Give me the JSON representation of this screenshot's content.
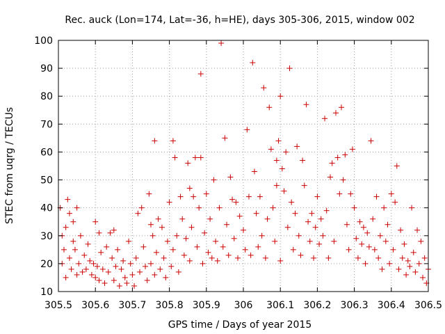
{
  "chart_data": {
    "type": "scatter",
    "title": "Rec. auck (Lon=174, Lat=-36, h=HE), days 305-306, 2015, window 002",
    "xlabel": "GPS time / Days of year 2015",
    "ylabel": "STEC from uqrg / TECUs",
    "xlim": [
      305.5,
      306.5
    ],
    "ylim": [
      10,
      100
    ],
    "grid": true,
    "marker": "plus",
    "color": "#cc0000",
    "x_ticks": [
      "305.5",
      "305.6",
      "305.7",
      "305.8",
      "305.9",
      "306",
      "306.1",
      "306.2",
      "306.3",
      "306.4",
      "306.5"
    ],
    "y_ticks": [
      "10",
      "20",
      "30",
      "40",
      "50",
      "60",
      "70",
      "80",
      "90",
      "100"
    ],
    "series": [
      {
        "points": [
          [
            305.505,
            40
          ],
          [
            305.51,
            20
          ],
          [
            305.51,
            30
          ],
          [
            305.515,
            25
          ],
          [
            305.52,
            15
          ],
          [
            305.52,
            33
          ],
          [
            305.525,
            43
          ],
          [
            305.53,
            38
          ],
          [
            305.53,
            22
          ],
          [
            305.535,
            18
          ],
          [
            305.54,
            35
          ],
          [
            305.54,
            28
          ],
          [
            305.545,
            25
          ],
          [
            305.55,
            16
          ],
          [
            305.55,
            40
          ],
          [
            305.555,
            20
          ],
          [
            305.56,
            30
          ],
          [
            305.565,
            17
          ],
          [
            305.57,
            23
          ],
          [
            305.575,
            18
          ],
          [
            305.58,
            27
          ],
          [
            305.585,
            21
          ],
          [
            305.59,
            16
          ],
          [
            305.595,
            20
          ],
          [
            305.6,
            35
          ],
          [
            305.6,
            15
          ],
          [
            305.605,
            19
          ],
          [
            305.61,
            31
          ],
          [
            305.61,
            14
          ],
          [
            305.615,
            24
          ],
          [
            305.62,
            18
          ],
          [
            305.625,
            13
          ],
          [
            305.63,
            26
          ],
          [
            305.635,
            17
          ],
          [
            305.64,
            31
          ],
          [
            305.645,
            22
          ],
          [
            305.65,
            32
          ],
          [
            305.65,
            14
          ],
          [
            305.655,
            19
          ],
          [
            305.66,
            25
          ],
          [
            305.665,
            12
          ],
          [
            305.67,
            18
          ],
          [
            305.675,
            21
          ],
          [
            305.68,
            15
          ],
          [
            305.685,
            13
          ],
          [
            305.69,
            28
          ],
          [
            305.695,
            20
          ],
          [
            305.7,
            16
          ],
          [
            305.705,
            12
          ],
          [
            305.71,
            22
          ],
          [
            305.715,
            38
          ],
          [
            305.72,
            17
          ],
          [
            305.725,
            40
          ],
          [
            305.73,
            26
          ],
          [
            305.735,
            19
          ],
          [
            305.74,
            14
          ],
          [
            305.745,
            45
          ],
          [
            305.75,
            34
          ],
          [
            305.75,
            20
          ],
          [
            305.755,
            30
          ],
          [
            305.76,
            64
          ],
          [
            305.76,
            16
          ],
          [
            305.765,
            24
          ],
          [
            305.77,
            36
          ],
          [
            305.775,
            18
          ],
          [
            305.78,
            33
          ],
          [
            305.785,
            22
          ],
          [
            305.79,
            15
          ],
          [
            305.795,
            28
          ],
          [
            305.8,
            42
          ],
          [
            305.805,
            19
          ],
          [
            305.81,
            64
          ],
          [
            305.81,
            25
          ],
          [
            305.815,
            58
          ],
          [
            305.82,
            30
          ],
          [
            305.825,
            17
          ],
          [
            305.83,
            44
          ],
          [
            305.835,
            36
          ],
          [
            305.84,
            23
          ],
          [
            305.845,
            29
          ],
          [
            305.85,
            56
          ],
          [
            305.855,
            47
          ],
          [
            305.855,
            21
          ],
          [
            305.86,
            33
          ],
          [
            305.865,
            44
          ],
          [
            305.87,
            58
          ],
          [
            305.875,
            26
          ],
          [
            305.88,
            40
          ],
          [
            305.885,
            88
          ],
          [
            305.885,
            58
          ],
          [
            305.89,
            20
          ],
          [
            305.895,
            31
          ],
          [
            305.9,
            45
          ],
          [
            305.905,
            24
          ],
          [
            305.91,
            36
          ],
          [
            305.915,
            22
          ],
          [
            305.92,
            50
          ],
          [
            305.925,
            28
          ],
          [
            305.93,
            21
          ],
          [
            305.935,
            40
          ],
          [
            305.94,
            99
          ],
          [
            305.945,
            26
          ],
          [
            305.95,
            65
          ],
          [
            305.955,
            34
          ],
          [
            305.96,
            23
          ],
          [
            305.965,
            51
          ],
          [
            305.97,
            43
          ],
          [
            305.975,
            29
          ],
          [
            305.98,
            42
          ],
          [
            305.985,
            22
          ],
          [
            305.99,
            37
          ],
          [
            306.0,
            32
          ],
          [
            306.005,
            25
          ],
          [
            306.01,
            68
          ],
          [
            306.015,
            44
          ],
          [
            306.02,
            23
          ],
          [
            306.025,
            92
          ],
          [
            306.03,
            53
          ],
          [
            306.035,
            38
          ],
          [
            306.04,
            26
          ],
          [
            306.045,
            44
          ],
          [
            306.05,
            30
          ],
          [
            306.055,
            83
          ],
          [
            306.06,
            22
          ],
          [
            306.065,
            36
          ],
          [
            306.07,
            76
          ],
          [
            306.075,
            61
          ],
          [
            306.08,
            40
          ],
          [
            306.085,
            28
          ],
          [
            306.09,
            57
          ],
          [
            306.09,
            48
          ],
          [
            306.095,
            64
          ],
          [
            306.1,
            80
          ],
          [
            306.1,
            21
          ],
          [
            306.105,
            54
          ],
          [
            306.11,
            46
          ],
          [
            306.115,
            60
          ],
          [
            306.12,
            33
          ],
          [
            306.125,
            90
          ],
          [
            306.13,
            42
          ],
          [
            306.135,
            25
          ],
          [
            306.14,
            38
          ],
          [
            306.145,
            62
          ],
          [
            306.15,
            30
          ],
          [
            306.155,
            23
          ],
          [
            306.16,
            57
          ],
          [
            306.165,
            48
          ],
          [
            306.17,
            77
          ],
          [
            306.175,
            35
          ],
          [
            306.18,
            28
          ],
          [
            306.185,
            38
          ],
          [
            306.19,
            22
          ],
          [
            306.195,
            33
          ],
          [
            306.2,
            44
          ],
          [
            306.205,
            27
          ],
          [
            306.21,
            36
          ],
          [
            306.215,
            30
          ],
          [
            306.22,
            72
          ],
          [
            306.225,
            39
          ],
          [
            306.23,
            22
          ],
          [
            306.235,
            51
          ],
          [
            306.24,
            56
          ],
          [
            306.245,
            28
          ],
          [
            306.25,
            74
          ],
          [
            306.255,
            58
          ],
          [
            306.26,
            45
          ],
          [
            306.265,
            76
          ],
          [
            306.27,
            50
          ],
          [
            306.275,
            59
          ],
          [
            306.28,
            34
          ],
          [
            306.285,
            25
          ],
          [
            306.29,
            45
          ],
          [
            306.295,
            61
          ],
          [
            306.3,
            40
          ],
          [
            306.305,
            29
          ],
          [
            306.31,
            22
          ],
          [
            306.315,
            35
          ],
          [
            306.32,
            27
          ],
          [
            306.325,
            33
          ],
          [
            306.33,
            20
          ],
          [
            306.335,
            31
          ],
          [
            306.34,
            26
          ],
          [
            306.345,
            64
          ],
          [
            306.35,
            36
          ],
          [
            306.355,
            25
          ],
          [
            306.36,
            44
          ],
          [
            306.365,
            22
          ],
          [
            306.37,
            30
          ],
          [
            306.375,
            18
          ],
          [
            306.38,
            40
          ],
          [
            306.385,
            28
          ],
          [
            306.39,
            34
          ],
          [
            306.395,
            20
          ],
          [
            306.4,
            45
          ],
          [
            306.405,
            25
          ],
          [
            306.41,
            42
          ],
          [
            306.415,
            55
          ],
          [
            306.42,
            18
          ],
          [
            306.425,
            32
          ],
          [
            306.43,
            22
          ],
          [
            306.435,
            27
          ],
          [
            306.44,
            16
          ],
          [
            306.445,
            21
          ],
          [
            306.45,
            19
          ],
          [
            306.455,
            40
          ],
          [
            306.46,
            24
          ],
          [
            306.465,
            17
          ],
          [
            306.47,
            32
          ],
          [
            306.475,
            20
          ],
          [
            306.48,
            28
          ],
          [
            306.485,
            15
          ],
          [
            306.49,
            22
          ],
          [
            306.495,
            13
          ],
          [
            306.5,
            18
          ]
        ]
      }
    ]
  }
}
